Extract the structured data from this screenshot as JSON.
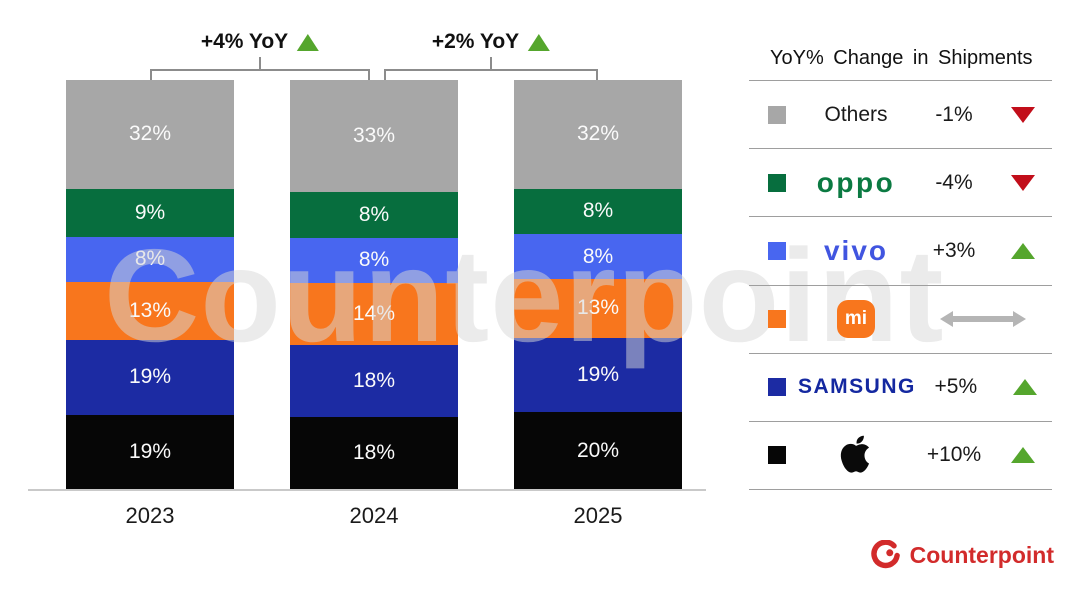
{
  "chart_data": {
    "type": "stacked-bar",
    "categories": [
      "2023",
      "2024",
      "2025"
    ],
    "unit": "%",
    "series": [
      {
        "name": "Apple",
        "color": "#060606",
        "values": [
          19,
          18,
          20
        ],
        "labels": [
          "19%",
          "18%",
          "20%"
        ]
      },
      {
        "name": "Samsung",
        "color": "#1c2ba3",
        "values": [
          19,
          18,
          19
        ],
        "labels": [
          "19%",
          "18%",
          "19%"
        ]
      },
      {
        "name": "Xiaomi",
        "color": "#f8761d",
        "values": [
          13,
          14,
          13
        ],
        "labels": [
          "13%",
          "14%",
          "13%"
        ]
      },
      {
        "name": "vivo",
        "color": "#4866f0",
        "values": [
          8,
          8,
          8
        ],
        "labels": [
          "8%",
          "8%",
          "8%"
        ]
      },
      {
        "name": "OPPO",
        "color": "#076e3e",
        "values": [
          9,
          8,
          8
        ],
        "labels": [
          "9%",
          "8%",
          "8%"
        ]
      },
      {
        "name": "Others",
        "color": "#a7a7a7",
        "values": [
          32,
          33,
          32
        ],
        "labels": [
          "32%",
          "33%",
          "32%"
        ]
      }
    ],
    "ylim": [
      0,
      100
    ],
    "grid": false,
    "legend_position": "right",
    "annotations": [
      {
        "label": "+4% YoY",
        "direction": "up",
        "span": [
          "2023",
          "2024"
        ]
      },
      {
        "label": "+2% YoY",
        "direction": "up",
        "span": [
          "2024",
          "2025"
        ]
      }
    ],
    "legend": {
      "title": "YoY% Change in Shipments",
      "rows": [
        {
          "name": "Others",
          "logo": "text",
          "label": "Others",
          "swatch": "#a7a7a7",
          "change": "-1%",
          "direction": "down"
        },
        {
          "name": "OPPO",
          "logo": "oppo",
          "label": "oppo",
          "swatch": "#076e3e",
          "change": "-4%",
          "direction": "down"
        },
        {
          "name": "vivo",
          "logo": "vivo",
          "label": "vivo",
          "swatch": "#4866f0",
          "change": "+3%",
          "direction": "up"
        },
        {
          "name": "Xiaomi",
          "logo": "mi",
          "label": "mi",
          "swatch": "#f8761d",
          "change": "",
          "direction": "flat"
        },
        {
          "name": "Samsung",
          "logo": "samsung",
          "label": "SAMSUNG",
          "swatch": "#1c2ba3",
          "change": "+5%",
          "direction": "up"
        },
        {
          "name": "Apple",
          "logo": "apple",
          "label": "",
          "swatch": "#060606",
          "change": "+10%",
          "direction": "up"
        }
      ]
    }
  },
  "watermark": {
    "text": "Counterpoint"
  },
  "footer": {
    "brand": "Counterpoint",
    "accent": "#d22b2b"
  },
  "colors": {
    "up": "#55a62d",
    "down": "#c20e1a",
    "flat": "#b5b5b5",
    "bracket": "#8c8c8c",
    "axis_line": "#c9c9c9",
    "divider": "#9e9e9e"
  }
}
